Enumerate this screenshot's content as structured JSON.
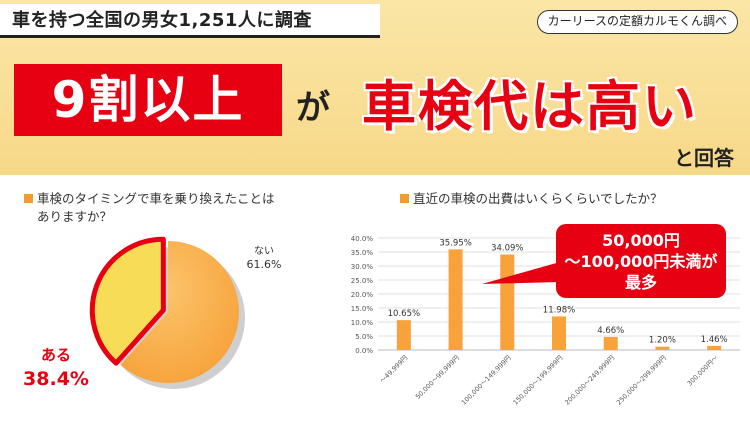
{
  "header": {
    "survey_title": "車を持つ全国の男女1,251人に調査",
    "source": "カーリースの定額カルモくん調べ",
    "headline_box": "9割以上",
    "headline_connector": "が",
    "headline_main": "車検代は高い",
    "headline_suffix": "と回答"
  },
  "pie_panel": {
    "question_line1": "車検のタイミングで車を乗り換えたことは",
    "question_line2": "ありますか？"
  },
  "bar_panel": {
    "question": "直近の車検の出費はいくらくらいでしたか？",
    "callout_line1": "50,000円",
    "callout_line2": "～100,000円未満が",
    "callout_line3": "最多"
  },
  "chart_data": [
    {
      "type": "pie",
      "categories": [
        "ある",
        "ない"
      ],
      "values": [
        38.4,
        61.6
      ],
      "labels": [
        "38.4%",
        "61.6%"
      ],
      "colors": [
        "#f6dc57",
        "#f7a23b"
      ],
      "highlight_color": "#e60012"
    },
    {
      "type": "bar",
      "categories": [
        "～49,999円",
        "50,000～99,999円",
        "100,000～149,999円",
        "150,000～199,999円",
        "200,000～249,999円",
        "250,000～299,999円",
        "300,000円～"
      ],
      "values": [
        10.65,
        35.95,
        34.09,
        11.98,
        4.66,
        1.2,
        1.46
      ],
      "labels": [
        "10.65%",
        "35.95%",
        "34.09%",
        "11.98%",
        "4.66%",
        "1.20%",
        "1.46%"
      ],
      "ylim": [
        0,
        40
      ],
      "yticks": [
        "0.0%",
        "5.0%",
        "10.0%",
        "15.0%",
        "20.0%",
        "25.0%",
        "30.0%",
        "35.0%",
        "40.0%"
      ],
      "grid": true,
      "color": "#f7a23b"
    }
  ]
}
